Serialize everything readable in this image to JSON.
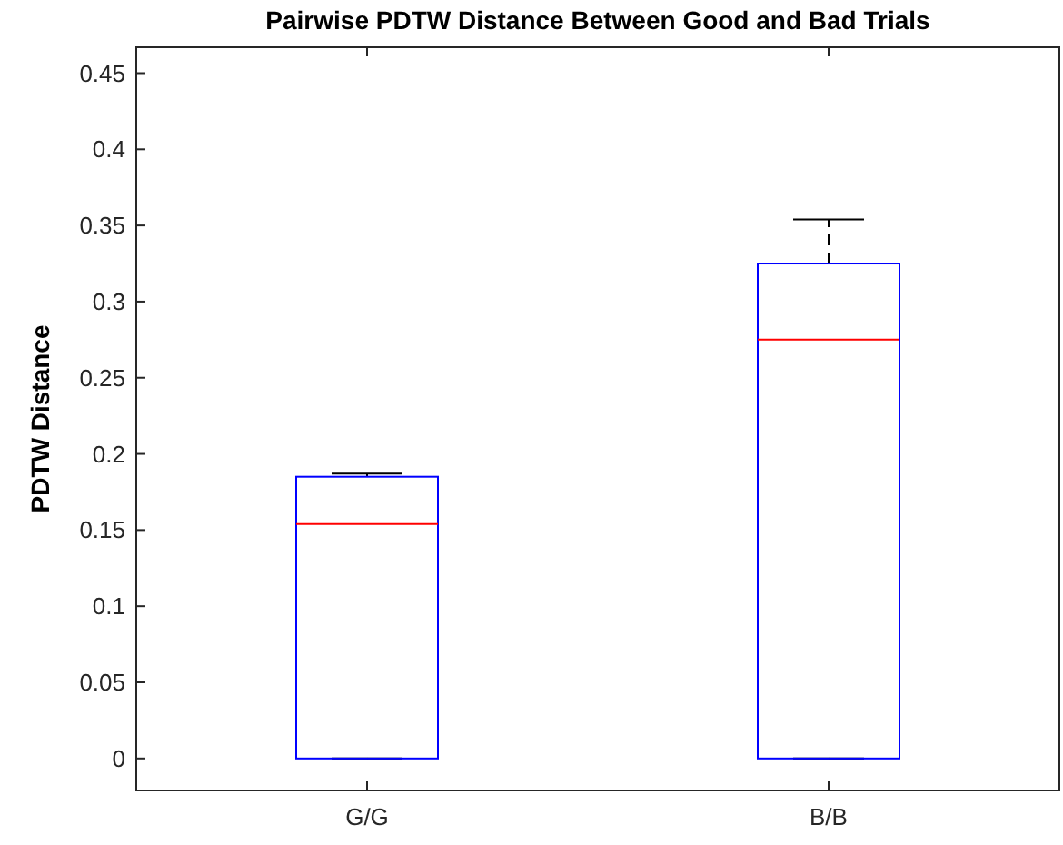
{
  "chart_data": {
    "type": "box",
    "title": "Pairwise PDTW Distance Between Good and Bad Trials",
    "ylabel": "PDTW Distance",
    "categories": [
      "G/G",
      "B/B"
    ],
    "boxes": [
      {
        "low": 0,
        "q1": 0,
        "median": 0.154,
        "q3": 0.185,
        "high": 0.187
      },
      {
        "low": 0,
        "q1": 0,
        "median": 0.275,
        "q3": 0.325,
        "high": 0.354
      }
    ],
    "color": "#0000ff",
    "ylim": [
      -0.021,
      0.467
    ],
    "yticks": [
      0,
      0.05,
      0.1,
      0.15,
      0.2,
      0.25,
      0.3,
      0.35,
      0.4,
      0.45
    ],
    "grid": false
  }
}
